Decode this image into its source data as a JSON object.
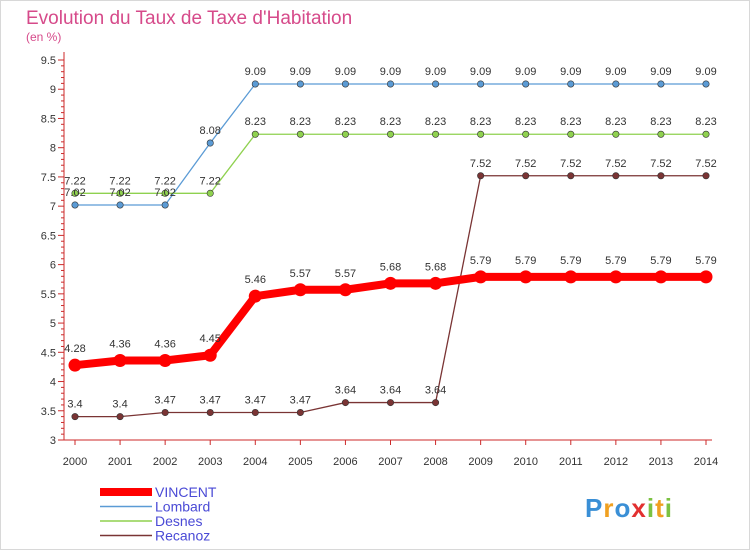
{
  "chart_data": {
    "type": "line",
    "title": "Evolution du Taux de Taxe d'Habitation",
    "subtitle": "(en %)",
    "x": [
      "2000",
      "2001",
      "2002",
      "2003",
      "2004",
      "2005",
      "2006",
      "2007",
      "2008",
      "2009",
      "2010",
      "2011",
      "2012",
      "2013",
      "2014"
    ],
    "ylim": [
      3,
      9.5
    ],
    "yticks": [
      "3",
      "3.5",
      "4",
      "4.5",
      "5",
      "5.5",
      "6",
      "6.5",
      "7",
      "7.5",
      "8",
      "8.5",
      "9",
      "9.5"
    ],
    "grid": false,
    "legend_position": "bottom-left",
    "series": [
      {
        "name": "Lombard",
        "color": "#5b9bd5",
        "values": [
          7.02,
          7.02,
          7.02,
          8.08,
          9.09,
          9.09,
          9.09,
          9.09,
          9.09,
          9.09,
          9.09,
          9.09,
          9.09,
          9.09,
          9.09
        ],
        "labels": [
          "7.02",
          "7.02",
          "7.02",
          "8.08",
          "9.09",
          "9.09",
          "9.09",
          "9.09",
          "9.09",
          "9.09",
          "9.09",
          "9.09",
          "9.09",
          "9.09",
          "9.09"
        ]
      },
      {
        "name": "Desnes",
        "color": "#8fd14f",
        "values": [
          7.22,
          7.22,
          7.22,
          7.22,
          8.23,
          8.23,
          8.23,
          8.23,
          8.23,
          8.23,
          8.23,
          8.23,
          8.23,
          8.23,
          8.23
        ],
        "labels": [
          "7.22",
          "7.22",
          "7.22",
          "7.22",
          "8.23",
          "8.23",
          "8.23",
          "8.23",
          "8.23",
          "8.23",
          "8.23",
          "8.23",
          "8.23",
          "8.23",
          "8.23"
        ]
      },
      {
        "name": "Recanoz",
        "color": "#7a3434",
        "values": [
          3.4,
          3.4,
          3.47,
          3.47,
          3.47,
          3.47,
          3.64,
          3.64,
          3.64,
          7.52,
          7.52,
          7.52,
          7.52,
          7.52,
          7.52
        ],
        "labels": [
          "3.4",
          "3.4",
          "3.47",
          "3.47",
          "3.47",
          "3.47",
          "3.64",
          "3.64",
          "3.64",
          "7.52",
          "7.52",
          "7.52",
          "7.52",
          "7.52",
          "7.52"
        ]
      },
      {
        "name": "VINCENT",
        "color": "#ff0000",
        "highlight": true,
        "values": [
          4.28,
          4.36,
          4.36,
          4.45,
          5.46,
          5.57,
          5.57,
          5.68,
          5.68,
          5.79,
          5.79,
          5.79,
          5.79,
          5.79,
          5.79
        ],
        "labels": [
          "4.28",
          "4.36",
          "4.36",
          "4.45",
          "5.46",
          "5.57",
          "5.57",
          "5.68",
          "5.68",
          "5.79",
          "5.79",
          "5.79",
          "5.79",
          "5.79",
          "5.79"
        ]
      }
    ]
  },
  "legend_order": [
    "VINCENT",
    "Lombard",
    "Desnes",
    "Recanoz"
  ],
  "logo": {
    "text": "Proxiti",
    "colors": [
      "#3a8fd6",
      "#f0a020",
      "#e23030",
      "#7cc242"
    ]
  }
}
